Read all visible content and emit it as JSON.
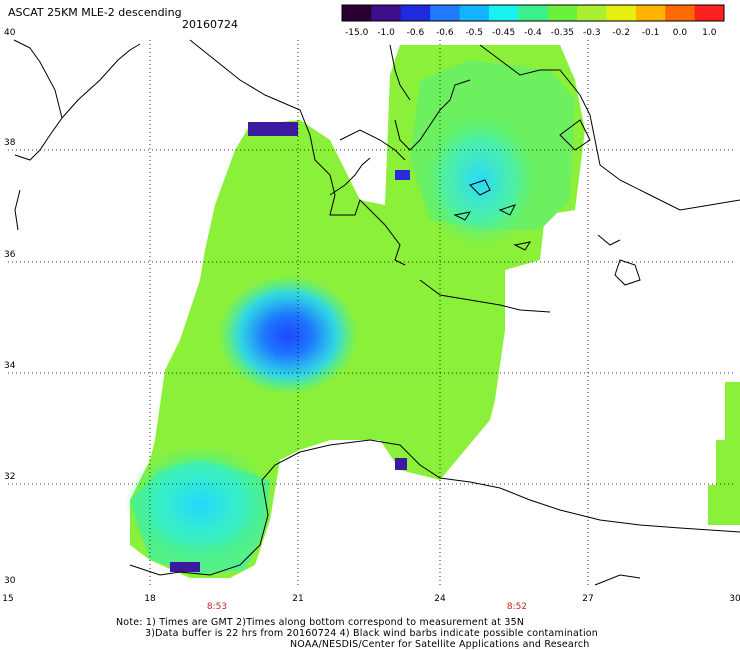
{
  "header": {
    "title": "ASCAT 25KM MLE-2 descending",
    "date": "20160724"
  },
  "colorbar": {
    "labels": [
      "-15.0",
      "-1.0",
      "-0.6",
      "-0.6",
      "-0.5",
      "-0.45",
      "-0.4",
      "-0.35",
      "-0.3",
      "-0.2",
      "-0.1",
      "0.0",
      "1.0"
    ],
    "colors": [
      "#2a0032",
      "#3b0f8a",
      "#1e2ae0",
      "#1f7aff",
      "#13b4ff",
      "#1af0f0",
      "#3cf08c",
      "#6bf03c",
      "#aaf030",
      "#e6f010",
      "#ffb400",
      "#ff6a00",
      "#ff2020"
    ]
  },
  "map": {
    "lat_labels": [
      "40",
      "38",
      "36",
      "34",
      "32",
      "30"
    ],
    "lon_labels": [
      "15",
      "18",
      "21",
      "24",
      "27",
      "30"
    ],
    "time_labels": [
      "8:53",
      "8:52"
    ],
    "time_color": "#c8281e"
  },
  "notes": {
    "line1": "Note: 1) Times are GMT 2)Times along bottom correspond to measurement at 35N",
    "line2": "3)Data buffer is 22 hrs from 20160724 4) Black wind barbs indicate possible contamination",
    "line3": "NOAA/NESDIS/Center for Satellite Applications and Research"
  }
}
